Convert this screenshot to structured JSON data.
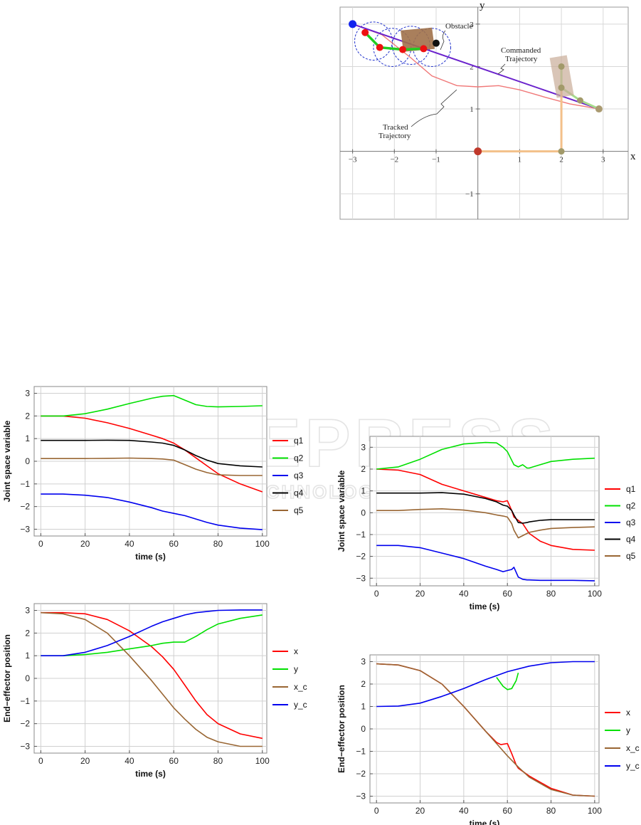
{
  "watermark": {
    "main": "SCITEPRESS",
    "sub": "SCIENCE AND TECHNOLOGY PUBLICATIONS"
  },
  "chart_data": [
    {
      "id": "trajectory",
      "type": "scatter",
      "title": "",
      "xlabel": "x",
      "ylabel": "y",
      "xlim": [
        -3.3,
        3.6
      ],
      "ylim": [
        -1.6,
        3.4
      ],
      "x_ticks": [
        -3,
        -2,
        -1,
        1,
        2,
        3
      ],
      "x_tick_labels": [
        "−3",
        "−2",
        "−1",
        "1",
        "2",
        "3"
      ],
      "y_ticks": [
        -1,
        1,
        2,
        3
      ],
      "y_tick_labels": [
        "−1",
        "1",
        "2",
        "3"
      ],
      "annotations": {
        "obstacle": "Obstacle",
        "commanded_1": "Commanded",
        "commanded_2": "Trajectory",
        "tracked_1": "Tracked",
        "tracked_2": "Trajectory"
      },
      "commanded_trajectory": [
        [
          -3.0,
          3.0
        ],
        [
          2.9,
          1.0
        ]
      ],
      "tracked_trajectory": [
        [
          -3.0,
          3.0
        ],
        [
          -2.3,
          2.75
        ],
        [
          -1.6,
          2.2
        ],
        [
          -1.1,
          1.78
        ],
        [
          -0.5,
          1.55
        ],
        [
          0.0,
          1.52
        ],
        [
          0.5,
          1.55
        ],
        [
          1.0,
          1.45
        ],
        [
          1.6,
          1.28
        ],
        [
          2.2,
          1.12
        ],
        [
          2.9,
          1.0
        ]
      ],
      "obstacle_center": [
        -1.0,
        2.55
      ],
      "initial_arm": [
        [
          0,
          0
        ],
        [
          2,
          0
        ],
        [
          2,
          2
        ],
        [
          2,
          1.5
        ],
        [
          2.45,
          1.2
        ],
        [
          2.9,
          1.0
        ]
      ],
      "final_arm": [
        [
          -2.7,
          2.8
        ],
        [
          -2.35,
          2.45
        ],
        [
          -1.8,
          2.4
        ],
        [
          -1.3,
          2.42
        ]
      ],
      "circle_centers": [
        [
          -2.5,
          2.6
        ],
        [
          -2.05,
          2.45
        ],
        [
          -1.6,
          2.5
        ],
        [
          -1.1,
          2.45
        ]
      ],
      "circle_radius": 0.45,
      "end_effector_start": [
        -3.0,
        3.0
      ],
      "base": [
        0,
        0
      ]
    },
    {
      "id": "joint_left",
      "type": "line",
      "xlabel": "time (s)",
      "ylabel": "Joint space variable",
      "xlim": [
        -3,
        102
      ],
      "ylim": [
        -3.3,
        3.3
      ],
      "x_ticks": [
        0,
        20,
        40,
        60,
        80,
        100
      ],
      "y_ticks": [
        3,
        2,
        1,
        0,
        -1,
        -2,
        -3
      ],
      "y_tick_labels": [
        "3",
        "2",
        "1",
        "0",
        "−1",
        "−2",
        "−3"
      ],
      "x": [
        0,
        10,
        20,
        30,
        40,
        50,
        55,
        60,
        65,
        70,
        75,
        80,
        90,
        100
      ],
      "series": [
        {
          "name": "q1",
          "color": "#ff0000",
          "values": [
            2.0,
            2.0,
            1.9,
            1.7,
            1.45,
            1.15,
            1.0,
            0.8,
            0.5,
            0.15,
            -0.2,
            -0.55,
            -1.0,
            -1.35
          ]
        },
        {
          "name": "q2",
          "color": "#00e000",
          "values": [
            2.0,
            2.0,
            2.1,
            2.3,
            2.55,
            2.78,
            2.87,
            2.9,
            2.7,
            2.5,
            2.42,
            2.4,
            2.42,
            2.45
          ]
        },
        {
          "name": "q3",
          "color": "#0000ee",
          "values": [
            -1.45,
            -1.45,
            -1.5,
            -1.6,
            -1.8,
            -2.05,
            -2.2,
            -2.3,
            -2.4,
            -2.55,
            -2.7,
            -2.82,
            -2.95,
            -3.02
          ]
        },
        {
          "name": "q4",
          "color": "#000000",
          "values": [
            0.92,
            0.92,
            0.92,
            0.93,
            0.92,
            0.85,
            0.8,
            0.7,
            0.5,
            0.25,
            0.05,
            -0.1,
            -0.2,
            -0.25
          ]
        },
        {
          "name": "q5",
          "color": "#996633",
          "values": [
            0.12,
            0.12,
            0.12,
            0.13,
            0.14,
            0.12,
            0.1,
            0.05,
            -0.15,
            -0.35,
            -0.5,
            -0.6,
            -0.63,
            -0.63
          ]
        }
      ]
    },
    {
      "id": "joint_right",
      "type": "line",
      "xlabel": "time (s)",
      "ylabel": "Joint space variable",
      "xlim": [
        -3,
        102
      ],
      "ylim": [
        -3.35,
        3.5
      ],
      "x_ticks": [
        0,
        20,
        40,
        60,
        80,
        100
      ],
      "y_ticks": [
        3,
        2,
        1,
        0,
        -1,
        -2,
        -3
      ],
      "y_tick_labels": [
        "3",
        "2",
        "1",
        "0",
        "−1",
        "−2",
        "−3"
      ],
      "x": [
        0,
        10,
        20,
        30,
        40,
        50,
        55,
        58,
        60,
        62,
        63,
        65,
        67,
        69,
        70,
        75,
        80,
        90,
        100
      ],
      "series": [
        {
          "name": "q1",
          "color": "#ff0000",
          "values": [
            2.0,
            1.95,
            1.75,
            1.3,
            1.0,
            0.7,
            0.55,
            0.5,
            0.55,
            0.1,
            -0.2,
            -0.35,
            -0.5,
            -0.8,
            -0.95,
            -1.3,
            -1.5,
            -1.68,
            -1.72
          ]
        },
        {
          "name": "q2",
          "color": "#00e000",
          "values": [
            2.0,
            2.1,
            2.45,
            2.9,
            3.15,
            3.22,
            3.2,
            3.0,
            2.8,
            2.4,
            2.2,
            2.1,
            2.2,
            2.05,
            2.05,
            2.2,
            2.35,
            2.45,
            2.5
          ]
        },
        {
          "name": "q3",
          "color": "#0000ee",
          "values": [
            -1.5,
            -1.5,
            -1.6,
            -1.85,
            -2.1,
            -2.45,
            -2.6,
            -2.7,
            -2.65,
            -2.6,
            -2.5,
            -2.95,
            -3.05,
            -3.08,
            -3.08,
            -3.1,
            -3.1,
            -3.1,
            -3.12
          ]
        },
        {
          "name": "q4",
          "color": "#000000",
          "values": [
            0.9,
            0.9,
            0.9,
            0.92,
            0.85,
            0.65,
            0.5,
            0.35,
            0.3,
            0.1,
            -0.1,
            -0.45,
            -0.48,
            -0.45,
            -0.42,
            -0.35,
            -0.32,
            -0.32,
            -0.32
          ]
        },
        {
          "name": "q5",
          "color": "#996633",
          "values": [
            0.1,
            0.1,
            0.15,
            0.18,
            0.12,
            0.0,
            -0.1,
            -0.15,
            -0.2,
            -0.5,
            -0.8,
            -1.15,
            -1.05,
            -0.95,
            -0.9,
            -0.8,
            -0.72,
            -0.68,
            -0.65
          ]
        }
      ]
    },
    {
      "id": "endeff_left",
      "type": "line",
      "xlabel": "time (s)",
      "ylabel": "End−effector position",
      "xlim": [
        -3,
        102
      ],
      "ylim": [
        -3.3,
        3.3
      ],
      "x_ticks": [
        0,
        20,
        40,
        60,
        80,
        100
      ],
      "y_ticks": [
        3,
        2,
        1,
        0,
        -1,
        -2,
        -3
      ],
      "y_tick_labels": [
        "3",
        "2",
        "1",
        "0",
        "−1",
        "−2",
        "−3"
      ],
      "x": [
        0,
        10,
        20,
        30,
        40,
        50,
        55,
        60,
        65,
        70,
        75,
        80,
        90,
        100
      ],
      "series": [
        {
          "name": "x",
          "color": "#ff0000",
          "values": [
            2.9,
            2.9,
            2.85,
            2.6,
            2.1,
            1.4,
            0.95,
            0.4,
            -0.3,
            -1.0,
            -1.6,
            -2.0,
            -2.45,
            -2.65
          ]
        },
        {
          "name": "y",
          "color": "#00e000",
          "values": [
            1.0,
            1.0,
            1.05,
            1.15,
            1.3,
            1.45,
            1.55,
            1.6,
            1.6,
            1.85,
            2.15,
            2.4,
            2.65,
            2.8
          ]
        },
        {
          "name": "x_c",
          "color": "#996633",
          "values": [
            2.9,
            2.85,
            2.6,
            2.0,
            1.0,
            -0.1,
            -0.7,
            -1.3,
            -1.8,
            -2.25,
            -2.6,
            -2.8,
            -3.0,
            -3.0
          ]
        },
        {
          "name": "y_c",
          "color": "#0000ee",
          "values": [
            1.0,
            1.0,
            1.15,
            1.45,
            1.85,
            2.3,
            2.5,
            2.65,
            2.8,
            2.9,
            2.95,
            3.0,
            3.02,
            3.02
          ]
        }
      ]
    },
    {
      "id": "endeff_right",
      "type": "line",
      "xlabel": "time (s)",
      "ylabel": "End−effector position",
      "xlim": [
        -3,
        102
      ],
      "ylim": [
        -3.3,
        3.3
      ],
      "x_ticks": [
        0,
        20,
        40,
        60,
        80,
        100
      ],
      "y_ticks": [
        3,
        2,
        1,
        0,
        -1,
        -2,
        -3
      ],
      "y_tick_labels": [
        "3",
        "2",
        "1",
        "0",
        "−1",
        "−2",
        "−3"
      ],
      "series": [
        {
          "name": "x",
          "color": "#ff0000",
          "x": [
            0,
            10,
            20,
            30,
            40,
            50,
            55,
            57,
            60,
            62,
            64,
            65,
            70,
            80,
            90,
            100
          ],
          "values": [
            2.9,
            2.85,
            2.6,
            2.0,
            1.0,
            -0.1,
            -0.6,
            -0.7,
            -0.65,
            -1.1,
            -1.6,
            -1.75,
            -2.1,
            -2.65,
            -2.95,
            -3.0
          ]
        },
        {
          "name": "y",
          "color": "#00e000",
          "x": [
            55,
            58,
            60,
            62,
            64,
            65
          ],
          "values": [
            2.3,
            1.9,
            1.75,
            1.8,
            2.15,
            2.5
          ]
        },
        {
          "name": "x_c",
          "color": "#996633",
          "x": [
            0,
            10,
            20,
            30,
            40,
            50,
            55,
            60,
            65,
            70,
            80,
            90,
            100
          ],
          "values": [
            2.9,
            2.85,
            2.6,
            2.0,
            1.0,
            -0.1,
            -0.65,
            -1.2,
            -1.7,
            -2.15,
            -2.7,
            -2.95,
            -3.0
          ]
        },
        {
          "name": "y_c",
          "color": "#0000ee",
          "x": [
            0,
            10,
            20,
            30,
            40,
            50,
            60,
            70,
            80,
            90,
            100
          ],
          "values": [
            1.0,
            1.02,
            1.15,
            1.45,
            1.8,
            2.2,
            2.55,
            2.8,
            2.95,
            3.0,
            3.0
          ]
        }
      ]
    }
  ]
}
